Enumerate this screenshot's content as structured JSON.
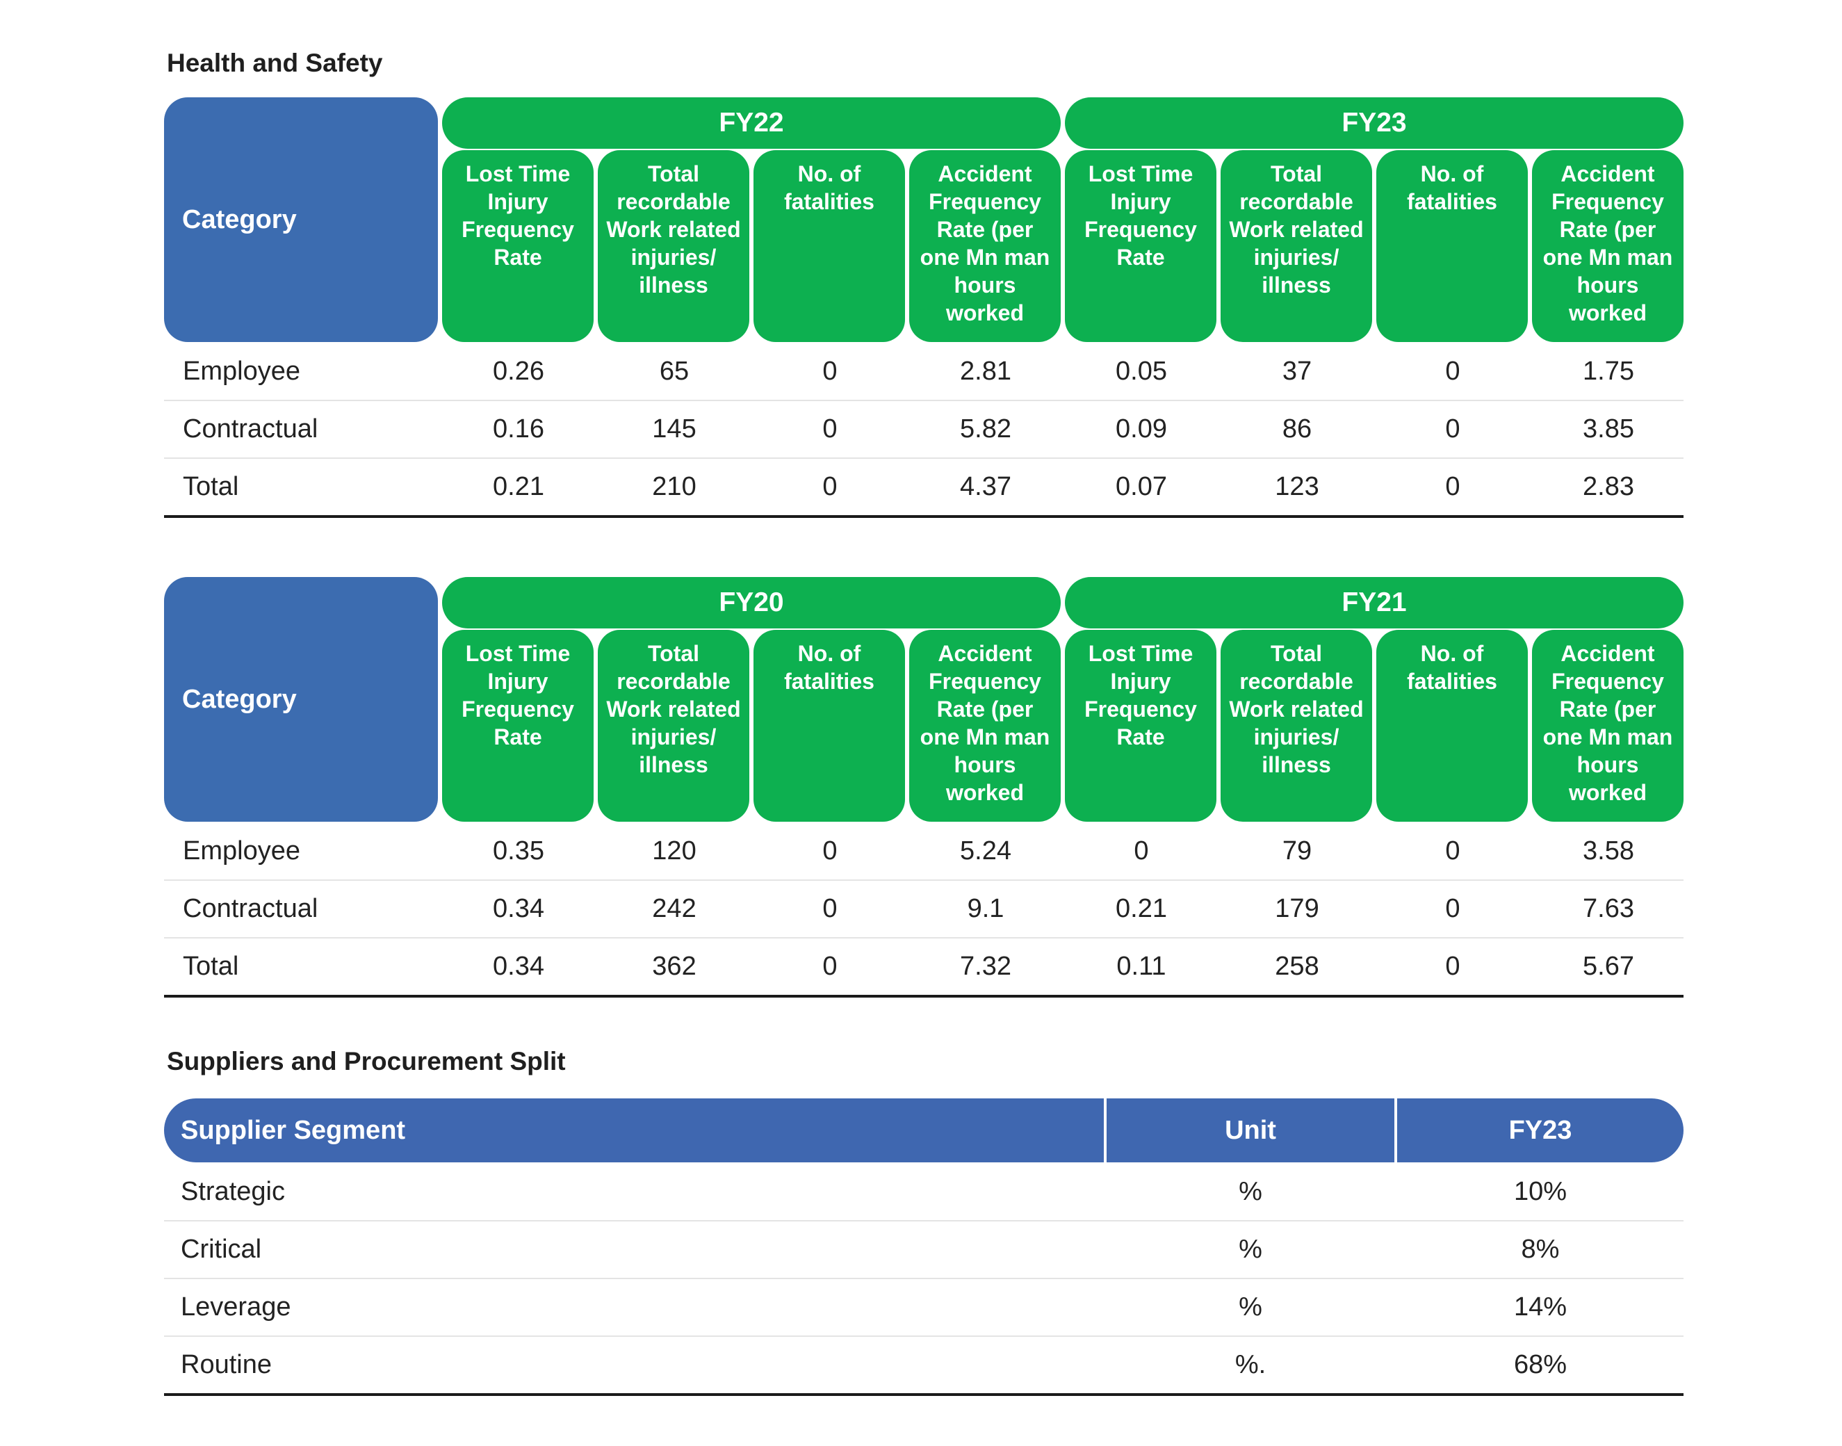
{
  "sections": {
    "health_safety_title": "Health and Safety",
    "suppliers_title": "Suppliers and Procurement Split"
  },
  "hs_tables": [
    {
      "category_header": "Category",
      "years": [
        "FY22",
        "FY23"
      ],
      "columns": [
        "Lost Time Injury Frequency Rate",
        "Total recordable Work related injuries/ illness",
        "No. of fatalities",
        "Accident Frequency Rate (per one Mn man hours worked"
      ],
      "rows": [
        {
          "label": "Employee",
          "values": [
            "0.26",
            "65",
            "0",
            "2.81",
            "0.05",
            "37",
            "0",
            "1.75"
          ]
        },
        {
          "label": "Contractual",
          "values": [
            "0.16",
            "145",
            "0",
            "5.82",
            "0.09",
            "86",
            "0",
            "3.85"
          ]
        },
        {
          "label": "Total",
          "values": [
            "0.21",
            "210",
            "0",
            "4.37",
            "0.07",
            "123",
            "0",
            "2.83"
          ]
        }
      ]
    },
    {
      "category_header": "Category",
      "years": [
        "FY20",
        "FY21"
      ],
      "columns": [
        "Lost Time Injury Frequency Rate",
        "Total recordable Work related injuries/ illness",
        "No. of fatalities",
        "Accident Frequency Rate (per one Mn man hours worked"
      ],
      "rows": [
        {
          "label": "Employee",
          "values": [
            "0.35",
            "120",
            "0",
            "5.24",
            "0",
            "79",
            "0",
            "3.58"
          ]
        },
        {
          "label": "Contractual",
          "values": [
            "0.34",
            "242",
            "0",
            "9.1",
            "0.21",
            "179",
            "0",
            "7.63"
          ]
        },
        {
          "label": "Total",
          "values": [
            "0.34",
            "362",
            "0",
            "7.32",
            "0.11",
            "258",
            "0",
            "5.67"
          ]
        }
      ]
    }
  ],
  "suppliers": {
    "headers": [
      "Supplier Segment",
      "Unit",
      "FY23"
    ],
    "rows": [
      {
        "segment": "Strategic",
        "unit": "%",
        "value": "10%"
      },
      {
        "segment": "Critical",
        "unit": "%",
        "value": "8%"
      },
      {
        "segment": "Leverage",
        "unit": "%",
        "value": "14%"
      },
      {
        "segment": "Routine",
        "unit": "%.",
        "value": "68%"
      }
    ]
  },
  "colors": {
    "category_blue": "#3c6cb0",
    "header_green": "#0db050",
    "supplier_header_blue": "#3f67b0"
  }
}
